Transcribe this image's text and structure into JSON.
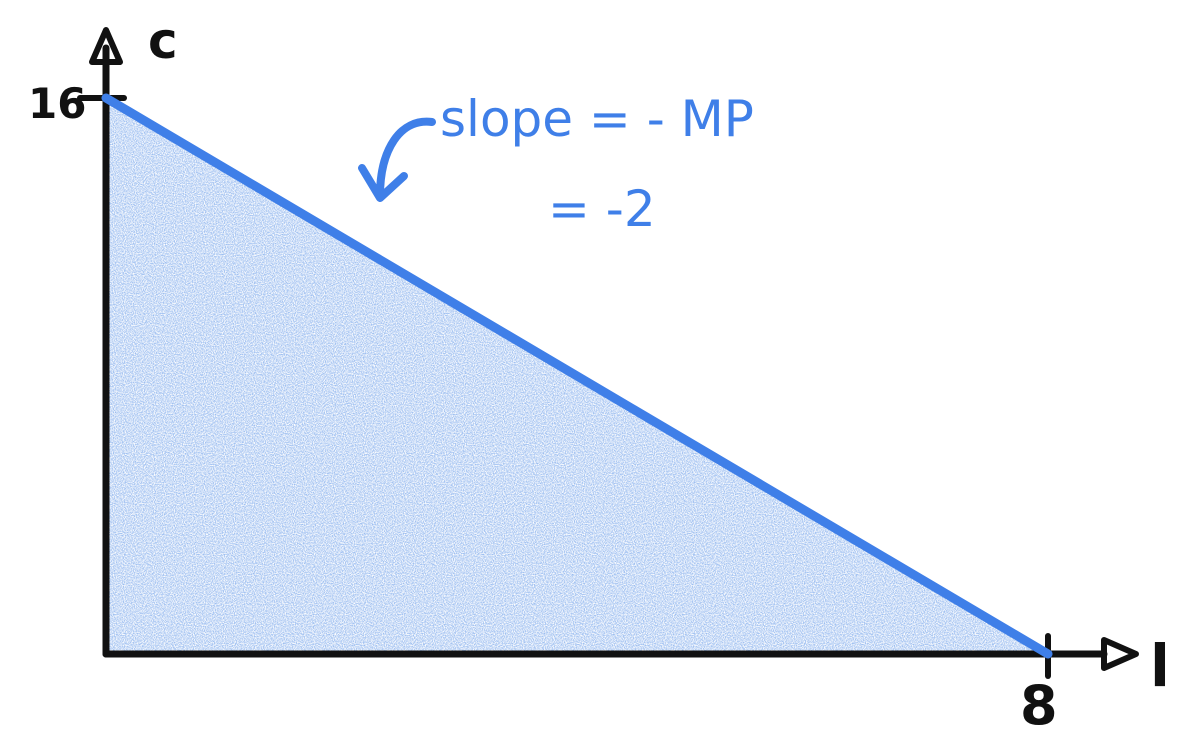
{
  "chart_data": {
    "type": "area",
    "xlabel": "l",
    "ylabel": "c",
    "x_tick_labels": [
      "8"
    ],
    "y_tick_labels": [
      "16"
    ],
    "xlim": [
      0,
      8
    ],
    "ylim": [
      0,
      16
    ],
    "series": [
      {
        "x": [
          0,
          8
        ],
        "y": [
          16,
          0
        ]
      }
    ],
    "fill": "shaded region below line",
    "grid": false,
    "annotations": [
      {
        "text_line1": "slope = - MP",
        "text_line2": "= -2"
      }
    ]
  },
  "colors": {
    "axis": "#111111",
    "line": "#3f7fe8",
    "fill": "#9bbdf0",
    "annotation": "#3f7fe8"
  }
}
